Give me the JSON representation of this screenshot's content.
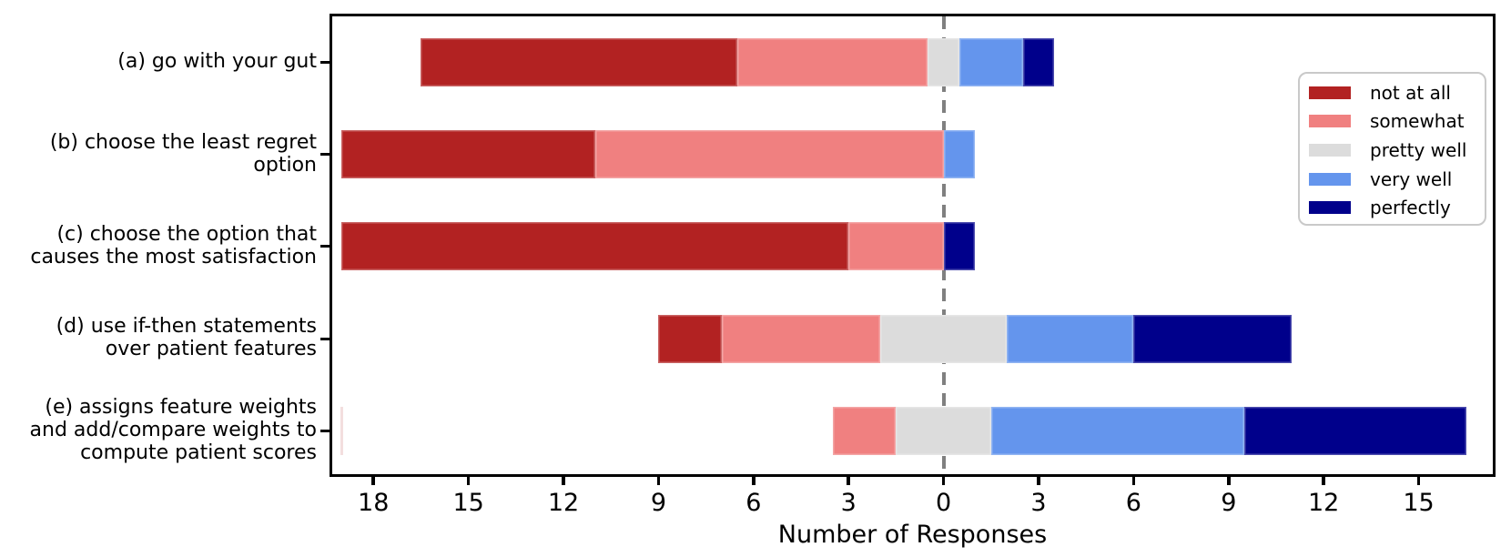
{
  "figure": {
    "xlabel": "Number of Responses"
  },
  "chart_data": {
    "type": "bar",
    "variant": "horizontal-diverging-stacked-likert",
    "title": "",
    "xlabel": "Number of Responses",
    "ylabel": "",
    "categories": [
      {
        "key": "a",
        "label": "(a) go with your gut",
        "lines": [
          "(a) go with your gut"
        ]
      },
      {
        "key": "b",
        "label": "(b) choose the least regret option",
        "lines": [
          "(b) choose the least regret",
          "option"
        ]
      },
      {
        "key": "c",
        "label": "(c) choose the option that causes the most satisfaction",
        "lines": [
          "(c) choose the option that",
          "causes the most satisfaction"
        ]
      },
      {
        "key": "d",
        "label": "(d) use if-then statements over patient features",
        "lines": [
          "(d) use if-then statements",
          "over patient features"
        ]
      },
      {
        "key": "e",
        "label": "(e) assigns feature weights and add/compare weights to compute patient scores",
        "lines": [
          "(e) assigns feature weights",
          "and add/compare weights to",
          "compute patient scores"
        ]
      }
    ],
    "series": [
      {
        "name": "not at all",
        "color": "#B22222",
        "values": [
          10,
          8,
          16,
          2,
          0
        ]
      },
      {
        "name": "somewhat",
        "color": "#F08080",
        "values": [
          6,
          11,
          3,
          5,
          2
        ]
      },
      {
        "name": "pretty well",
        "color": "#DCDCDC",
        "values": [
          1,
          0,
          0,
          4,
          3
        ]
      },
      {
        "name": "very well",
        "color": "#6495ED",
        "values": [
          2,
          1,
          0,
          4,
          8
        ]
      },
      {
        "name": "perfectly",
        "color": "#00008B",
        "values": [
          1,
          0,
          1,
          5,
          7
        ]
      }
    ],
    "stacking_rule": "neutral series (pretty well) centered on zero; not-at-all/somewhat extend left, very-well/perfectly extend right",
    "neutral_series": "pretty well",
    "xlim": [
      -19.3,
      17.34
    ],
    "x_ticks": [
      -18,
      -15,
      -12,
      -9,
      -6,
      -3,
      0,
      3,
      6,
      9,
      12,
      15
    ],
    "x_tick_labels": [
      "18",
      "15",
      "12",
      "9",
      "6",
      "3",
      "0",
      "3",
      "6",
      "9",
      "12",
      "15"
    ],
    "grid": false,
    "zero_line": {
      "x": 0,
      "style": "dashed",
      "color": "#808080"
    },
    "legend": {
      "position": "upper-right",
      "entries": [
        "not at all",
        "somewhat",
        "pretty well",
        "very well",
        "perfectly"
      ],
      "border_color": "#c9c9c9"
    },
    "artifact_line": {
      "x": -19,
      "category_index": 4,
      "color": "#f3dede"
    }
  }
}
